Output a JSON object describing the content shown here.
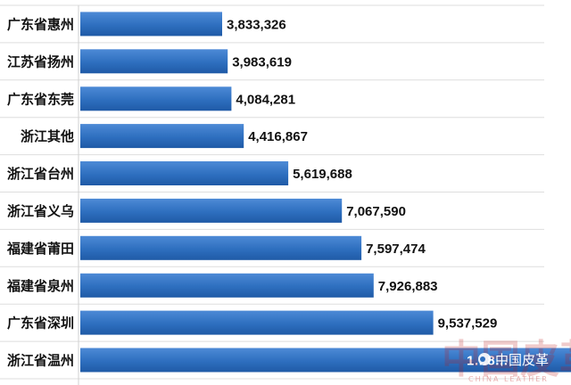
{
  "chart_data": {
    "type": "bar",
    "orientation": "horizontal",
    "categories": [
      "广东省惠州",
      "江苏省扬州",
      "广东省东莞",
      "浙江其他",
      "浙江省台州",
      "浙江省义乌",
      "福建省莆田",
      "福建省泉州",
      "广东省深圳",
      "浙江省温州"
    ],
    "values": [
      3833326,
      3983619,
      4084281,
      4416867,
      5619688,
      7067590,
      7597474,
      7926883,
      9537529,
      13800000
    ],
    "value_labels": [
      "3,833,326",
      "3,983,619",
      "4,084,281",
      "4,416,867",
      "5,619,688",
      "7,067,590",
      "7,597,474",
      "7,926,883",
      "9,537,529",
      "1…8…"
    ],
    "bar_color": "#2e6fbf",
    "grid": "horizontal separators",
    "legend": "none"
  },
  "watermark": {
    "brand_text": "中国皮革",
    "sub_text": "CHINA LEATHER",
    "badge_text": "中国皮革",
    "color": "#c01818"
  }
}
